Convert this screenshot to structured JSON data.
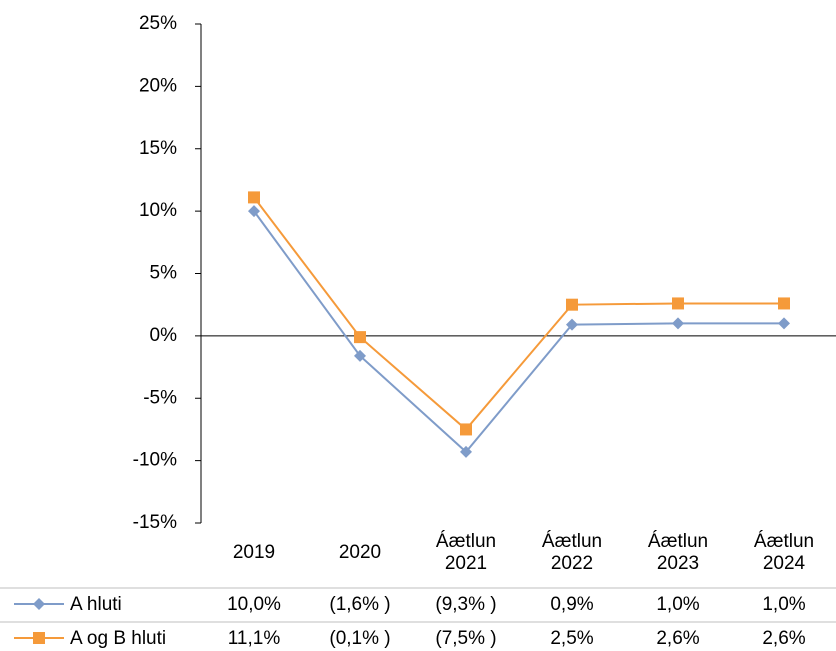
{
  "chart_data": {
    "type": "line",
    "categories": [
      "2019",
      "2020",
      "Áætlun 2021",
      "Áætlun 2022",
      "Áætlun 2023",
      "Áætlun 2024"
    ],
    "series": [
      {
        "name": "A hluti",
        "color": "#7f9cc9",
        "marker": "diamond",
        "values": [
          10.0,
          -1.6,
          -9.3,
          0.9,
          1.0,
          1.0
        ],
        "value_labels": [
          "10,0%",
          "(1,6% )",
          "(9,3% )",
          "0,9%",
          "1,0%",
          "1,0%"
        ]
      },
      {
        "name": "A og B hluti",
        "color": "#f59a3a",
        "marker": "square",
        "values": [
          11.1,
          -0.1,
          -7.5,
          2.5,
          2.6,
          2.6
        ],
        "value_labels": [
          "11,1%",
          "(0,1% )",
          "(7,5% )",
          "2,5%",
          "2,6%",
          "2,6%"
        ]
      }
    ],
    "ylim": [
      -15,
      25
    ],
    "yticks": [
      {
        "value": -15,
        "label": "-15%"
      },
      {
        "value": -10,
        "label": "-10%"
      },
      {
        "value": -5,
        "label": "-5%"
      },
      {
        "value": 0,
        "label": "0%"
      },
      {
        "value": 5,
        "label": "5%"
      },
      {
        "value": 10,
        "label": "10%"
      },
      {
        "value": 15,
        "label": "15%"
      },
      {
        "value": 20,
        "label": "20%"
      },
      {
        "value": 25,
        "label": "25%"
      }
    ],
    "grid": false
  }
}
